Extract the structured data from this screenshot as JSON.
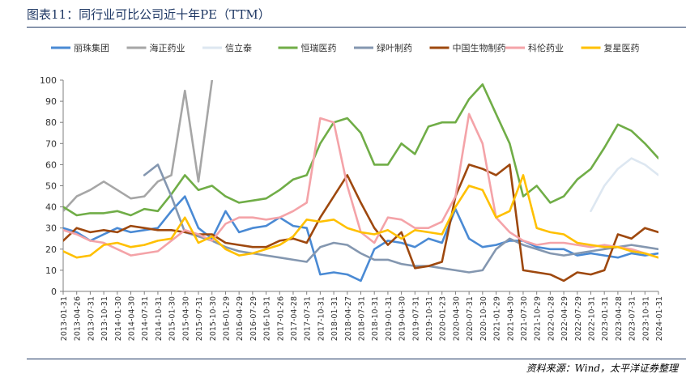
{
  "title": "图表11：同行业可比公司近十年PE（TTM）",
  "source": "资料来源：Wind，太平洋证券整理",
  "chart_data": {
    "type": "line",
    "title": "图表11：同行业可比公司近十年PE（TTM）",
    "xlabel": "",
    "ylabel": "",
    "ylim": [
      0,
      100
    ],
    "yticks": [
      0,
      10,
      20,
      30,
      40,
      50,
      60,
      70,
      80,
      90,
      100
    ],
    "grid": false,
    "legend_position": "top",
    "x": [
      "2013-01-31",
      "2013-04-26",
      "2013-07-31",
      "2013-10-31",
      "2014-01-30",
      "2014-04-30",
      "2014-07-31",
      "2014-10-31",
      "2015-01-30",
      "2015-04-30",
      "2015-07-31",
      "2015-10-30",
      "2016-01-29",
      "2016-04-29",
      "2016-07-29",
      "2016-10-31",
      "2017-01-26",
      "2017-04-28",
      "2017-07-31",
      "2017-10-31",
      "2018-01-31",
      "2018-04-27",
      "2018-07-31",
      "2018-10-31",
      "2019-01-31",
      "2019-04-30",
      "2019-07-31",
      "2019-10-31",
      "2020-01-23",
      "2020-04-30",
      "2020-07-31",
      "2020-10-30",
      "2021-01-29",
      "2021-04-30",
      "2021-07-30",
      "2021-10-29",
      "2022-01-28",
      "2022-04-29",
      "2022-07-29",
      "2022-10-31",
      "2023-01-31",
      "2023-04-28",
      "2023-07-31",
      "2023-10-31",
      "2024-01-31"
    ],
    "series": [
      {
        "name": "丽珠集团",
        "color": "#4a8ad4",
        "values": [
          30,
          28,
          24,
          27,
          30,
          28,
          29,
          30,
          38,
          45,
          30,
          25,
          38,
          28,
          30,
          31,
          35,
          31,
          30,
          8,
          9,
          8,
          5,
          20,
          24,
          23,
          21,
          25,
          23,
          39,
          25,
          21,
          22,
          24,
          24,
          21,
          20,
          20,
          17,
          18,
          17,
          16,
          18,
          17,
          18
        ]
      },
      {
        "name": "海正药业",
        "color": "#a6a6a6",
        "values": [
          38,
          45,
          48,
          52,
          48,
          44,
          45,
          52,
          55,
          95,
          52,
          100,
          null,
          null,
          null,
          null,
          null,
          null,
          null,
          null,
          null,
          null,
          null,
          null,
          null,
          null,
          null,
          null,
          null,
          null,
          null,
          null,
          null,
          null,
          null,
          null,
          null,
          null,
          null,
          null,
          null,
          null,
          null,
          null,
          null
        ]
      },
      {
        "name": "信立泰",
        "color": "#dde7f1",
        "values": [
          null,
          null,
          null,
          null,
          null,
          null,
          null,
          null,
          null,
          null,
          null,
          null,
          null,
          null,
          null,
          null,
          null,
          null,
          null,
          null,
          null,
          null,
          null,
          null,
          null,
          null,
          null,
          null,
          null,
          null,
          null,
          null,
          null,
          null,
          null,
          null,
          null,
          null,
          null,
          38,
          50,
          58,
          63,
          60,
          55
        ]
      },
      {
        "name": "恒瑞医药",
        "color": "#70ad47",
        "values": [
          40,
          36,
          37,
          37,
          38,
          36,
          39,
          38,
          46,
          55,
          48,
          50,
          45,
          42,
          43,
          44,
          48,
          53,
          55,
          70,
          80,
          82,
          75,
          60,
          60,
          70,
          65,
          78,
          80,
          80,
          91,
          98,
          84,
          70,
          45,
          50,
          42,
          45,
          53,
          58,
          68,
          79,
          76,
          70,
          63
        ]
      },
      {
        "name": "绿叶制药",
        "color": "#8497b0",
        "values": [
          null,
          null,
          null,
          null,
          null,
          null,
          55,
          60,
          45,
          28,
          26,
          24,
          21,
          19,
          18,
          17,
          16,
          15,
          14,
          21,
          23,
          22,
          18,
          15,
          15,
          13,
          12,
          12,
          11,
          10,
          9,
          10,
          20,
          25,
          22,
          20,
          18,
          17,
          18,
          19,
          20,
          21,
          22,
          21,
          20
        ]
      },
      {
        "name": "中国生物制药",
        "color": "#9e480e",
        "values": [
          24,
          30,
          28,
          29,
          28,
          31,
          30,
          29,
          29,
          28,
          27,
          27,
          23,
          22,
          21,
          21,
          24,
          25,
          23,
          35,
          45,
          55,
          42,
          30,
          22,
          28,
          11,
          12,
          14,
          45,
          60,
          58,
          55,
          60,
          10,
          9,
          8,
          5,
          9,
          8,
          10,
          27,
          25,
          30,
          28
        ]
      },
      {
        "name": "科伦药业",
        "color": "#f4a3a8",
        "values": [
          29,
          27,
          24,
          23,
          20,
          17,
          18,
          19,
          24,
          29,
          27,
          24,
          32,
          35,
          35,
          34,
          35,
          38,
          42,
          82,
          80,
          50,
          28,
          23,
          35,
          34,
          30,
          30,
          33,
          45,
          84,
          70,
          35,
          28,
          24,
          22,
          23,
          23,
          22,
          21,
          22,
          21,
          20,
          18,
          16
        ]
      },
      {
        "name": "复星医药",
        "color": "#ffc000",
        "values": [
          19,
          16,
          17,
          22,
          23,
          21,
          22,
          24,
          25,
          35,
          23,
          26,
          20,
          17,
          18,
          20,
          22,
          26,
          34,
          33,
          34,
          30,
          28,
          27,
          29,
          25,
          29,
          28,
          27,
          40,
          50,
          48,
          35,
          38,
          55,
          30,
          28,
          27,
          23,
          22,
          21,
          21,
          19,
          18,
          16
        ]
      }
    ]
  }
}
